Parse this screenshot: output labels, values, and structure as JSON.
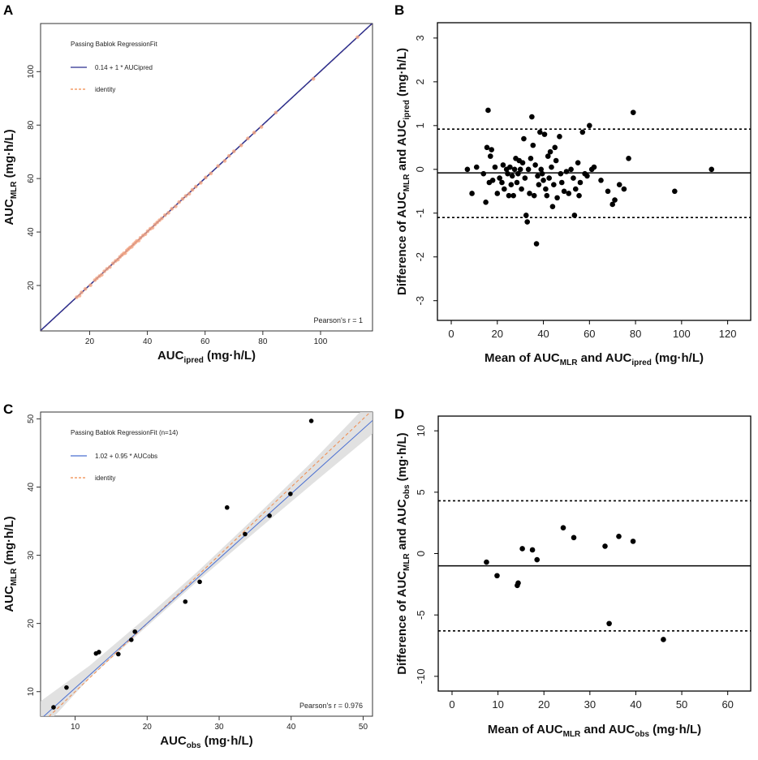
{
  "figure": {
    "panels": [
      "A",
      "B",
      "C",
      "D"
    ]
  },
  "chart_data": [
    {
      "panel": "A",
      "type": "scatter",
      "title": "",
      "xlabel": {
        "main": "AUC",
        "sub": "ipred",
        "unit": " (mg·h/L)"
      },
      "ylabel": {
        "main": "AUC",
        "sub": "MLR",
        "unit": " (mg·h/L)"
      },
      "xlim": [
        3,
        118
      ],
      "ylim": [
        3,
        118
      ],
      "xticks": [
        20,
        40,
        60,
        80,
        100
      ],
      "yticks": [
        20,
        40,
        60,
        80,
        100
      ],
      "legend_title": "Passing Bablok RegressionFit",
      "legend": [
        {
          "label": "0.14 + 1 * AUCipred",
          "style": "solid",
          "color": "#2b2f8f"
        },
        {
          "label": "identity",
          "style": "dashed",
          "color": "#f08a4b"
        }
      ],
      "fit": {
        "intercept": 0.14,
        "slope": 1
      },
      "annotation": "Pearson's r = 1",
      "points_color": "#f4a582",
      "points": [
        [
          15.5,
          15.6
        ],
        [
          16.5,
          16.2
        ],
        [
          17.2,
          17.4
        ],
        [
          18.5,
          18.7
        ],
        [
          20.3,
          20.1
        ],
        [
          21.8,
          22.0
        ],
        [
          22.5,
          22.7
        ],
        [
          23.4,
          23.5
        ],
        [
          24.2,
          24.0
        ],
        [
          25.1,
          25.3
        ],
        [
          26.0,
          26.2
        ],
        [
          27.0,
          26.9
        ],
        [
          28.1,
          28.3
        ],
        [
          29.0,
          29.2
        ],
        [
          29.8,
          29.7
        ],
        [
          30.5,
          30.7
        ],
        [
          31.2,
          31.4
        ],
        [
          31.8,
          32.0
        ],
        [
          32.3,
          32.1
        ],
        [
          32.9,
          33.1
        ],
        [
          33.4,
          33.6
        ],
        [
          34.0,
          34.2
        ],
        [
          34.6,
          34.5
        ],
        [
          35.2,
          35.4
        ],
        [
          35.8,
          36.0
        ],
        [
          36.3,
          36.6
        ],
        [
          37.0,
          36.8
        ],
        [
          37.6,
          37.8
        ],
        [
          38.5,
          38.7
        ],
        [
          39.3,
          39.2
        ],
        [
          40.1,
          40.3
        ],
        [
          41.0,
          41.2
        ],
        [
          41.8,
          41.6
        ],
        [
          42.6,
          42.8
        ],
        [
          43.4,
          43.6
        ],
        [
          44.2,
          44.4
        ],
        [
          45.0,
          45.1
        ],
        [
          46.1,
          46.3
        ],
        [
          47.3,
          47.2
        ],
        [
          48.5,
          48.7
        ],
        [
          49.8,
          49.6
        ],
        [
          51.0,
          51.2
        ],
        [
          52.2,
          52.4
        ],
        [
          53.3,
          53.5
        ],
        [
          54.5,
          54.3
        ],
        [
          55.6,
          55.8
        ],
        [
          56.8,
          57.0
        ],
        [
          58.5,
          58.4
        ],
        [
          60.2,
          60.4
        ],
        [
          62.0,
          61.9
        ],
        [
          64.5,
          64.7
        ],
        [
          66.8,
          66.6
        ],
        [
          68.3,
          68.5
        ],
        [
          70.0,
          70.2
        ],
        [
          72.5,
          72.4
        ],
        [
          74.8,
          75.0
        ],
        [
          77.0,
          77.2
        ],
        [
          79.5,
          79.3
        ],
        [
          84.5,
          84.7
        ],
        [
          97.5,
          97.3
        ],
        [
          112.8,
          112.9
        ]
      ]
    },
    {
      "panel": "B",
      "type": "scatter",
      "title": "",
      "xlabel": {
        "main": "Mean of AUC",
        "sub1": "MLR",
        "mid": " and AUC",
        "sub2": "ipred",
        "unit": " (mg·h/L)"
      },
      "ylabel": {
        "main": "Difference of AUC",
        "sub1": "MLR",
        "mid": " and AUC",
        "sub2": "ipred",
        "unit": " (mg·h/L)"
      },
      "xlim": [
        -6,
        130
      ],
      "ylim": [
        -3.45,
        3.35
      ],
      "xticks": [
        0,
        20,
        40,
        60,
        80,
        100,
        120
      ],
      "yticks": [
        -3,
        -2,
        -1,
        0,
        1,
        2,
        3
      ],
      "mean_diff": -0.08,
      "loa_upper": 0.92,
      "loa_lower": -1.1,
      "points": [
        [
          7,
          0.0
        ],
        [
          9,
          -0.55
        ],
        [
          11,
          0.05
        ],
        [
          14,
          -0.1
        ],
        [
          15,
          -0.75
        ],
        [
          15.5,
          0.5
        ],
        [
          16,
          1.35
        ],
        [
          16.5,
          -0.3
        ],
        [
          17,
          0.3
        ],
        [
          17.5,
          0.45
        ],
        [
          18,
          -0.25
        ],
        [
          19,
          0.05
        ],
        [
          20,
          -0.55
        ],
        [
          21,
          -0.2
        ],
        [
          22,
          -0.3
        ],
        [
          22.5,
          0.1
        ],
        [
          23,
          -0.45
        ],
        [
          24,
          0.0
        ],
        [
          24.5,
          -0.1
        ],
        [
          25,
          -0.6
        ],
        [
          25.5,
          0.05
        ],
        [
          26,
          -0.35
        ],
        [
          26.5,
          -0.15
        ],
        [
          27,
          -0.6
        ],
        [
          27.5,
          0.0
        ],
        [
          28,
          0.25
        ],
        [
          28.5,
          -0.3
        ],
        [
          29,
          -0.1
        ],
        [
          29.5,
          0.2
        ],
        [
          30,
          0.0
        ],
        [
          30.5,
          -0.45
        ],
        [
          31,
          0.15
        ],
        [
          31.5,
          0.7
        ],
        [
          32,
          -0.2
        ],
        [
          32.5,
          -1.05
        ],
        [
          33,
          -1.2
        ],
        [
          33.5,
          0.0
        ],
        [
          34,
          -0.55
        ],
        [
          34.5,
          0.25
        ],
        [
          35,
          1.2
        ],
        [
          35.5,
          0.55
        ],
        [
          36,
          -0.6
        ],
        [
          36.5,
          0.1
        ],
        [
          37,
          -1.7
        ],
        [
          37.5,
          -0.15
        ],
        [
          38,
          -0.35
        ],
        [
          38.5,
          0.85
        ],
        [
          39,
          0.0
        ],
        [
          39.5,
          -0.1
        ],
        [
          40,
          -0.25
        ],
        [
          40.5,
          0.8
        ],
        [
          41,
          -0.45
        ],
        [
          41.5,
          -0.6
        ],
        [
          42,
          0.3
        ],
        [
          42.5,
          -0.2
        ],
        [
          43,
          0.4
        ],
        [
          43.5,
          0.05
        ],
        [
          44,
          -0.85
        ],
        [
          44.5,
          -0.35
        ],
        [
          45,
          0.5
        ],
        [
          45.5,
          0.2
        ],
        [
          46,
          -0.65
        ],
        [
          47,
          0.75
        ],
        [
          47.5,
          -0.1
        ],
        [
          48,
          -0.3
        ],
        [
          49,
          -0.5
        ],
        [
          50,
          -0.05
        ],
        [
          51,
          -0.55
        ],
        [
          52,
          0.0
        ],
        [
          53,
          -0.2
        ],
        [
          53.5,
          -1.05
        ],
        [
          54,
          -0.45
        ],
        [
          55,
          0.15
        ],
        [
          55.5,
          -0.6
        ],
        [
          56,
          -0.3
        ],
        [
          57,
          0.85
        ],
        [
          58,
          -0.1
        ],
        [
          59,
          -0.15
        ],
        [
          60,
          1.0
        ],
        [
          61,
          0.0
        ],
        [
          62,
          0.05
        ],
        [
          65,
          -0.25
        ],
        [
          68,
          -0.5
        ],
        [
          70,
          -0.8
        ],
        [
          71,
          -0.7
        ],
        [
          73,
          -0.35
        ],
        [
          75,
          -0.45
        ],
        [
          77,
          0.25
        ],
        [
          79,
          1.3
        ],
        [
          97,
          -0.5
        ],
        [
          113,
          0.0
        ]
      ]
    },
    {
      "panel": "C",
      "type": "scatter",
      "title": "",
      "xlabel": {
        "main": "AUC",
        "sub": "obs",
        "unit": " (mg·h/L)"
      },
      "ylabel": {
        "main": "AUC",
        "sub": "MLR",
        "unit": " (mg·h/L)"
      },
      "xlim": [
        5.2,
        51.3
      ],
      "ylim": [
        6.4,
        51
      ],
      "xticks": [
        10,
        20,
        30,
        40,
        50
      ],
      "yticks": [
        10,
        20,
        30,
        40,
        50
      ],
      "legend_title": "Passing Bablok RegressionFit",
      "legend_title_suffix": "(n=14)",
      "legend": [
        {
          "label": "1.02 + 0.95 * AUCobs",
          "style": "solid",
          "color": "#4a6fd1"
        },
        {
          "label": "identity",
          "style": "dashed",
          "color": "#f08a4b"
        }
      ],
      "fit": {
        "intercept": 1.02,
        "slope": 0.95
      },
      "annotation": "Pearson's r = 0.976",
      "points": [
        [
          7.0,
          7.7
        ],
        [
          8.8,
          10.6
        ],
        [
          12.9,
          15.6
        ],
        [
          13.3,
          15.8
        ],
        [
          16.0,
          15.5
        ],
        [
          17.8,
          17.6
        ],
        [
          18.3,
          18.8
        ],
        [
          25.3,
          23.2
        ],
        [
          27.3,
          26.1
        ],
        [
          31.1,
          37.0
        ],
        [
          33.6,
          33.1
        ],
        [
          37.0,
          35.8
        ],
        [
          39.9,
          39.0
        ],
        [
          42.8,
          49.7
        ]
      ]
    },
    {
      "panel": "D",
      "type": "scatter",
      "title": "",
      "xlabel": {
        "main": "Mean of AUC",
        "sub1": "MLR",
        "mid": " and AUC",
        "sub2": "obs",
        "unit": " (mg·h/L)"
      },
      "ylabel": {
        "main": "Difference of AUC",
        "sub1": "MLR",
        "mid": " and AUC",
        "sub2": "obs",
        "unit": " (mg·h/L)"
      },
      "xlim": [
        -3,
        65
      ],
      "ylim": [
        -11.2,
        11.2
      ],
      "xticks": [
        0,
        10,
        20,
        30,
        40,
        50,
        60
      ],
      "yticks": [
        -10,
        -5,
        0,
        5,
        10
      ],
      "mean_diff": -1.0,
      "loa_upper": 4.3,
      "loa_lower": -6.3,
      "points": [
        [
          7.5,
          -0.7
        ],
        [
          9.8,
          -1.8
        ],
        [
          14.2,
          -2.6
        ],
        [
          14.4,
          -2.4
        ],
        [
          15.3,
          0.4
        ],
        [
          17.5,
          0.3
        ],
        [
          18.5,
          -0.5
        ],
        [
          24.2,
          2.1
        ],
        [
          26.5,
          1.3
        ],
        [
          33.3,
          0.6
        ],
        [
          34.2,
          -5.7
        ],
        [
          36.3,
          1.4
        ],
        [
          39.4,
          1.0
        ],
        [
          46.0,
          -7.0
        ]
      ]
    }
  ]
}
